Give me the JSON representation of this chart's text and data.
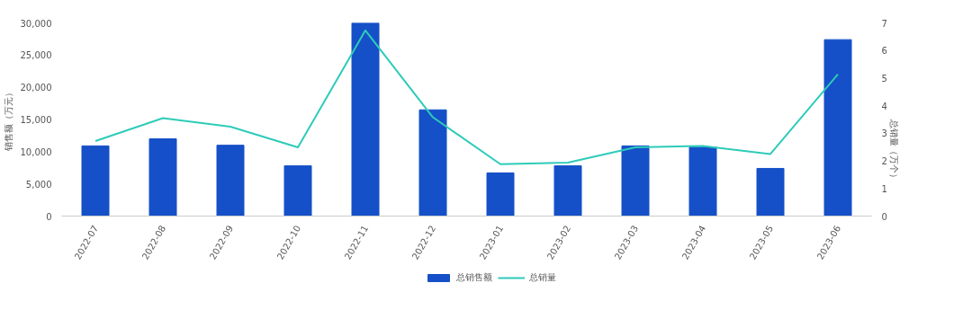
{
  "chart_data": {
    "type": "bar",
    "xlabel": null,
    "ylabel": "销售额（万元）",
    "y2label": "总销量（万个）",
    "categories": [
      "2022-07",
      "2022-08",
      "2022-09",
      "2022-10",
      "2022-11",
      "2022-12",
      "2023-01",
      "2023-02",
      "2023-03",
      "2023-04",
      "2023-05",
      "2023-06"
    ],
    "series": [
      {
        "name": "总销售额",
        "color": "#1550c8",
        "values": [
          10900,
          12000,
          11000,
          7800,
          30000,
          16500,
          6700,
          7800,
          10900,
          10700,
          7400,
          27400
        ]
      },
      {
        "name": "总销量",
        "type": "line",
        "axis": "y2",
        "color": "#2ecbb9",
        "values": [
          2.72,
          3.55,
          3.24,
          2.49,
          6.73,
          3.58,
          1.88,
          1.94,
          2.49,
          2.54,
          2.25,
          5.14
        ]
      }
    ],
    "ylim": [
      0,
      30000
    ],
    "yticks": [
      {
        "value": 0,
        "label": "0"
      },
      {
        "value": 5000,
        "label": "5,000"
      },
      {
        "value": 10000,
        "label": "10,000"
      },
      {
        "value": 15000,
        "label": "15,000"
      },
      {
        "value": 20000,
        "label": "20,000"
      },
      {
        "value": 25000,
        "label": "25,000"
      },
      {
        "value": 30000,
        "label": "30,000"
      }
    ],
    "y2lim": [
      0,
      7
    ],
    "y2ticks": [
      0,
      1,
      2,
      3,
      4,
      5,
      6,
      7
    ],
    "grid": false,
    "legend": "bottom",
    "marker": "none"
  }
}
